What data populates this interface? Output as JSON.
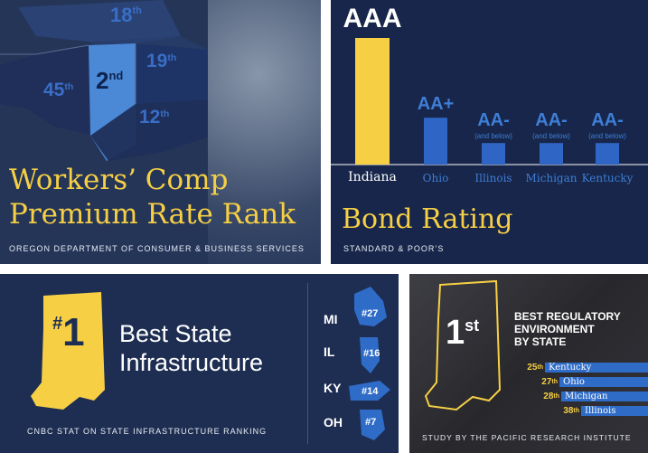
{
  "workers_comp": {
    "ranks": [
      {
        "state": "Michigan",
        "num": "18",
        "suffix": "th"
      },
      {
        "state": "Illinois",
        "num": "45",
        "suffix": "th"
      },
      {
        "state": "Indiana",
        "num": "2",
        "suffix": "nd"
      },
      {
        "state": "Ohio",
        "num": "19",
        "suffix": "th"
      },
      {
        "state": "Kentucky",
        "num": "12",
        "suffix": "th"
      }
    ],
    "title_line1": "Workers’ Comp",
    "title_line2": "Premium Rate Rank",
    "source": "OREGON DEPARTMENT OF CONSUMER & BUSINESS SERVICES"
  },
  "chart_data": {
    "type": "bar",
    "title": "Bond Rating",
    "source": "STANDARD & POOR’S",
    "categories": [
      "Indiana",
      "Ohio",
      "Illinois",
      "Michigan",
      "Kentucky"
    ],
    "ratings": [
      "AAA",
      "AA+",
      "AA-",
      "AA-",
      "AA-"
    ],
    "notes": [
      "",
      "",
      "(and below)",
      "(and below)",
      "(and below)"
    ],
    "values": [
      1.0,
      0.37,
      0.17,
      0.17,
      0.17
    ],
    "colors": {
      "highlight": "#f6cf45",
      "other": "#2f66c6"
    }
  },
  "infrastructure": {
    "rank_num": "#1",
    "title_line1": "Best State",
    "title_line2": "Infrastructure",
    "source": "CNBC STAT ON STATE INFRASTRUCTURE RANKING",
    "states": [
      {
        "abbr": "MI",
        "rank": "#27"
      },
      {
        "abbr": "IL",
        "rank": "#16"
      },
      {
        "abbr": "KY",
        "rank": "#14"
      },
      {
        "abbr": "OH",
        "rank": "#7"
      }
    ]
  },
  "regulatory": {
    "rank_num": "1",
    "rank_suffix": "st",
    "heading_line1": "BEST REGULATORY",
    "heading_line2": "ENVIRONMENT",
    "heading_line3": "BY STATE",
    "rows": [
      {
        "num": "25",
        "suffix": "th",
        "state": "Kentucky"
      },
      {
        "num": "27",
        "suffix": "th",
        "state": "Ohio"
      },
      {
        "num": "28",
        "suffix": "th",
        "state": "Michigan"
      },
      {
        "num": "38",
        "suffix": "th",
        "state": "Illinois"
      }
    ],
    "source": "STUDY BY THE PACIFIC RESEARCH INSTITUTE"
  }
}
